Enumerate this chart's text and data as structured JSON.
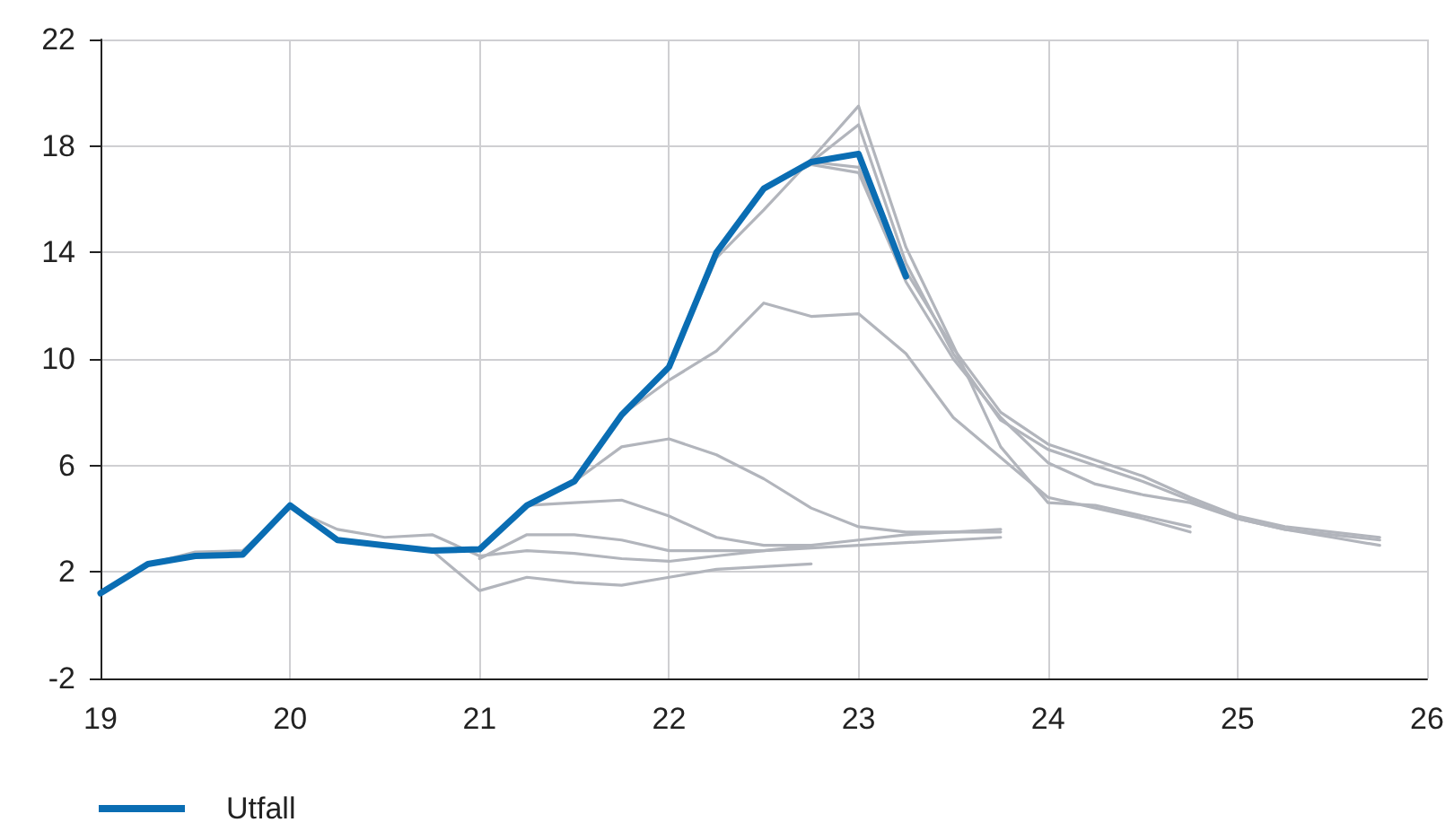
{
  "chart_data": {
    "type": "line",
    "xlim": [
      19,
      26
    ],
    "xticks": [
      19,
      20,
      21,
      22,
      23,
      24,
      25,
      26
    ],
    "ylim": [
      -2,
      22
    ],
    "yticks": [
      -2,
      2,
      6,
      10,
      14,
      18,
      22
    ],
    "grid": true,
    "legend": "bottom left",
    "marker": "none",
    "line_style": "solid",
    "series": [
      {
        "color": "#b2b5bc",
        "x": [
          20.75,
          21,
          21.25,
          21.5,
          21.75,
          22,
          22.25,
          22.5,
          22.75
        ],
        "values": [
          2.8,
          1.3,
          1.8,
          1.6,
          1.5,
          1.8,
          2.1,
          2.2,
          2.3
        ]
      },
      {
        "color": "#b2b5bc",
        "x": [
          19.25,
          19.5,
          19.75,
          20,
          20.25,
          20.5,
          20.75,
          21,
          21.25,
          21.5,
          21.75,
          22,
          22.25,
          22.5,
          22.75
        ],
        "values": [
          2.3,
          2.75,
          2.8,
          4.4,
          3.6,
          3.3,
          3.4,
          2.6,
          2.8,
          2.7,
          2.5,
          2.4,
          2.6,
          2.8,
          3.0
        ]
      },
      {
        "color": "#b2b5bc",
        "x": [
          21,
          21.25,
          21.5,
          21.75,
          22,
          22.25,
          22.5,
          22.75,
          23,
          23.25,
          23.5,
          23.75
        ],
        "values": [
          2.5,
          3.4,
          3.4,
          3.2,
          2.8,
          2.8,
          2.8,
          2.9,
          3.0,
          3.1,
          3.2,
          3.3
        ]
      },
      {
        "color": "#b2b5bc",
        "x": [
          21.25,
          21.5,
          21.75,
          22,
          22.25,
          22.5,
          22.75,
          23,
          23.25,
          23.5,
          23.75
        ],
        "values": [
          4.5,
          4.6,
          4.7,
          4.1,
          3.3,
          3.0,
          3.0,
          3.2,
          3.4,
          3.5,
          3.6
        ]
      },
      {
        "color": "#b2b5bc",
        "x": [
          21.5,
          21.75,
          22,
          22.25,
          22.5,
          22.75,
          23,
          23.25,
          23.5,
          23.75
        ],
        "values": [
          5.4,
          6.7,
          7.0,
          6.4,
          5.5,
          4.4,
          3.7,
          3.5,
          3.5,
          3.5
        ]
      },
      {
        "color": "#b2b5bc",
        "x": [
          21.75,
          22,
          22.25,
          22.5,
          22.75,
          23,
          23.25,
          23.5,
          23.75,
          24,
          24.25,
          24.5,
          24.75
        ],
        "values": [
          7.9,
          9.2,
          10.3,
          12.1,
          11.6,
          11.7,
          10.2,
          7.8,
          6.3,
          4.8,
          4.4,
          4.0,
          3.5
        ]
      },
      {
        "color": "#b2b5bc",
        "x": [
          22,
          22.25,
          22.5,
          22.75,
          23,
          23.25,
          23.5,
          23.75,
          24,
          24.25,
          24.5,
          24.75
        ],
        "values": [
          9.7,
          13.8,
          15.6,
          17.5,
          19.5,
          14.2,
          10.5,
          6.7,
          4.6,
          4.5,
          4.1,
          3.7
        ]
      },
      {
        "color": "#b2b5bc",
        "x": [
          22.25,
          22.5,
          22.75,
          23,
          23.25,
          23.5,
          23.75,
          24,
          24.25,
          24.5,
          24.75,
          25,
          25.25,
          25.5,
          25.75
        ],
        "values": [
          14.0,
          16.4,
          17.3,
          17.0,
          12.9,
          10.0,
          7.8,
          6.1,
          5.3,
          4.9,
          4.6,
          4.0,
          3.6,
          3.4,
          3.2
        ]
      },
      {
        "color": "#b2b5bc",
        "x": [
          22.5,
          22.75,
          23,
          23.25,
          23.5,
          23.75,
          24,
          24.25,
          24.5,
          24.75,
          25,
          25.25,
          25.5,
          25.75
        ],
        "values": [
          16.4,
          17.4,
          18.8,
          13.6,
          10.2,
          7.7,
          6.6,
          6.0,
          5.4,
          4.7,
          4.0,
          3.6,
          3.3,
          3.0
        ]
      },
      {
        "color": "#b2b5bc",
        "x": [
          22.75,
          23,
          23.25,
          23.5,
          23.75,
          24,
          24.25,
          24.5,
          24.75,
          25,
          25.25,
          25.5,
          25.75
        ],
        "values": [
          17.4,
          17.2,
          13.3,
          10.4,
          8.0,
          6.8,
          6.2,
          5.6,
          4.8,
          4.1,
          3.7,
          3.5,
          3.3
        ]
      },
      {
        "name": "Utfall",
        "color": "#0a6db3",
        "x": [
          19,
          19.25,
          19.5,
          19.75,
          20,
          20.25,
          20.5,
          20.75,
          21,
          21.25,
          21.5,
          21.75,
          22,
          22.25,
          22.5,
          22.75,
          23,
          23.25
        ],
        "values": [
          1.2,
          2.3,
          2.6,
          2.65,
          4.5,
          3.2,
          3.0,
          2.8,
          2.85,
          4.5,
          5.4,
          7.9,
          9.7,
          14.0,
          16.4,
          17.4,
          17.7,
          13.1
        ]
      }
    ]
  }
}
